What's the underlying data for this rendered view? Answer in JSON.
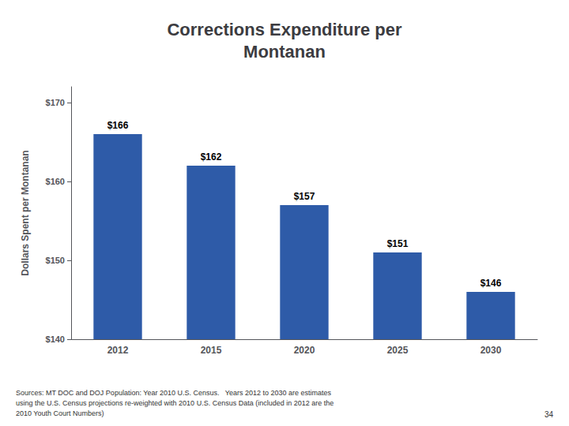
{
  "chart_data": {
    "type": "bar",
    "title": "Corrections Expenditure per\nMontanan",
    "ylabel": "Dollars Spent per Montanan",
    "categories": [
      "2012",
      "2015",
      "2020",
      "2025",
      "2030"
    ],
    "values": [
      166,
      162,
      157,
      151,
      146
    ],
    "value_labels": [
      "$166",
      "$162",
      "$157",
      "$151",
      "$146"
    ],
    "data_labels": true,
    "color": "#2E5BA8",
    "ylim": [
      140,
      172
    ],
    "yticks": [
      {
        "value": 140,
        "label": "$140"
      },
      {
        "value": 150,
        "label": "$150"
      },
      {
        "value": 160,
        "label": "$160"
      },
      {
        "value": 170,
        "label": "$170"
      }
    ],
    "grid": false,
    "footnote": "Sources: MT DOC and DOJ Population: Year 2010 U.S. Census.   Years 2012 to 2030 are estimates\nusing the U.S. Census projections re-weighted with 2010 U.S. Census Data (included in 2012 are the\n2010 Youth Court Numbers)",
    "page_number": "34"
  }
}
